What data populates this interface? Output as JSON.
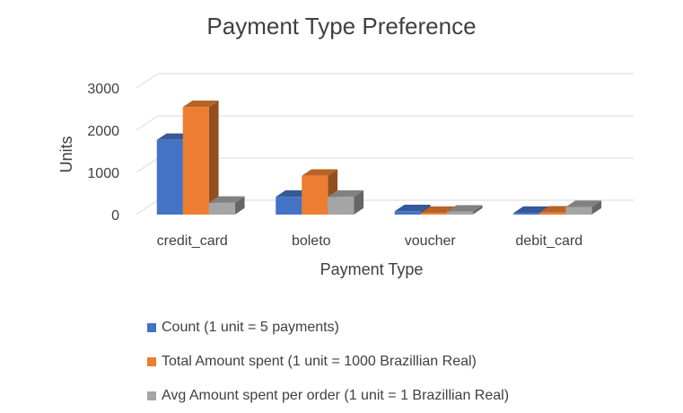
{
  "chart_data": {
    "type": "bar",
    "title": "Payment Type Preference",
    "xlabel": "Payment Type",
    "ylabel": "Units",
    "categories": [
      "credit_card",
      "boleto",
      "voucher",
      "debit_card"
    ],
    "ylim": [
      0,
      3000
    ],
    "yticks": [
      0,
      1000,
      2000,
      3000
    ],
    "grid": true,
    "legend_position": "bottom",
    "series": [
      {
        "name": "Count (1 unit = 5 payments)",
        "color": "#4472C4",
        "values": [
          1770,
          420,
          80,
          40
        ]
      },
      {
        "name": "Total Amount spent (1 unit = 1000 Brazillian Real)",
        "color": "#ED7D31",
        "values": [
          2550,
          920,
          40,
          50
        ]
      },
      {
        "name": "Avg Amount spent per order (1 unit = 1 Brazillian Real)",
        "color": "#A5A5A5",
        "values": [
          280,
          420,
          70,
          180
        ]
      }
    ]
  }
}
